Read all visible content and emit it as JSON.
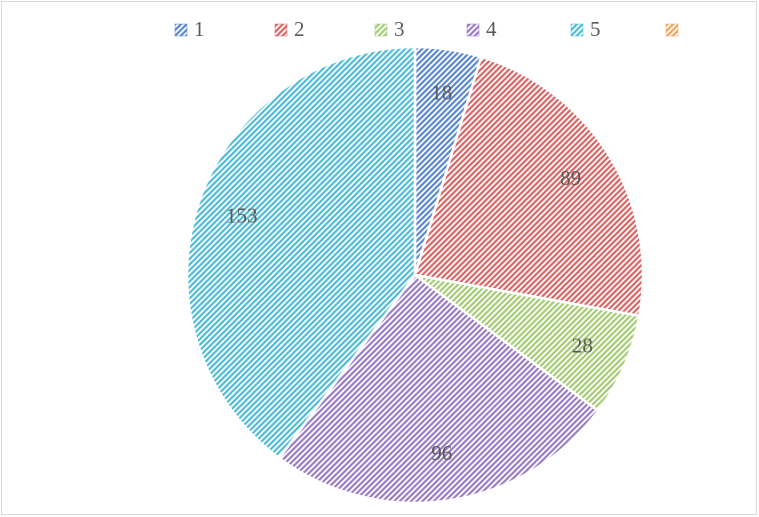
{
  "chart_data": {
    "type": "pie",
    "categories": [
      "1",
      "2",
      "3",
      "4",
      "5",
      null
    ],
    "values": [
      18,
      89,
      28,
      96,
      153,
      null
    ],
    "colors": [
      "#5b87cf",
      "#dc6464",
      "#a3cc74",
      "#9a7cc4",
      "#4fbcd6",
      "#f5a45a"
    ]
  }
}
